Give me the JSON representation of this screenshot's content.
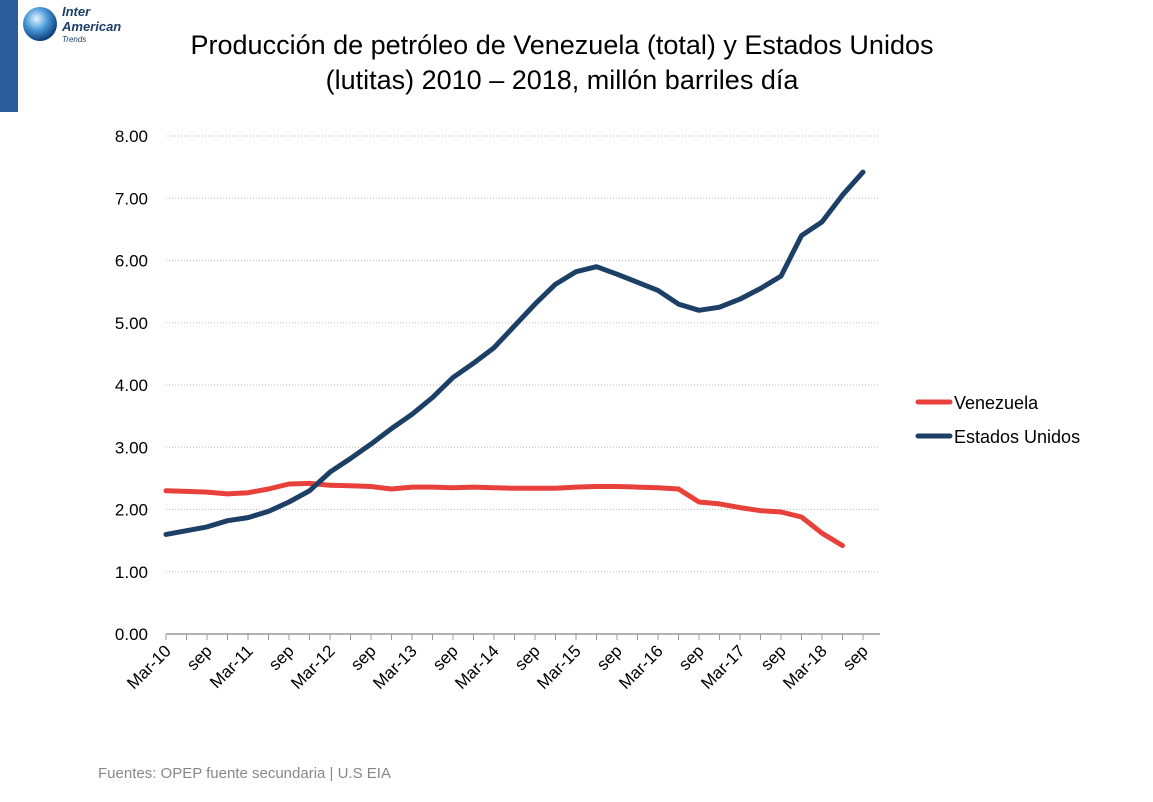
{
  "logo": {
    "line1": "Inter",
    "line2": "American",
    "line3": "Trends"
  },
  "source": "Fuentes: OPEP fuente secundaria | U.S EIA",
  "chart_data": {
    "type": "line",
    "title": [
      "Producción de petróleo de Venezuela (total) y Estados Unidos",
      "(lutitas) 2010 – 2018, millón barriles día"
    ],
    "categories": [
      "Mar-10",
      null,
      "sep",
      null,
      "Mar-11",
      null,
      "sep",
      null,
      "Mar-12",
      null,
      "sep",
      null,
      "Mar-13",
      null,
      "sep",
      null,
      "Mar-14",
      null,
      "sep",
      null,
      "Mar-15",
      null,
      "sep",
      null,
      "Mar-16",
      null,
      "sep",
      null,
      "Mar-17",
      null,
      "sep",
      null,
      "Mar-18",
      null,
      "sep"
    ],
    "series": [
      {
        "name": "Venezuela",
        "color": "#e8403a",
        "values": [
          2.3,
          2.29,
          2.28,
          2.25,
          2.27,
          2.33,
          2.41,
          2.42,
          2.39,
          2.38,
          2.37,
          2.33,
          2.36,
          2.36,
          2.35,
          2.36,
          2.35,
          2.34,
          2.34,
          2.34,
          2.36,
          2.37,
          2.37,
          2.36,
          2.35,
          2.33,
          2.12,
          2.09,
          2.03,
          1.98,
          1.96,
          1.88,
          1.62,
          1.42,
          null
        ]
      },
      {
        "name": "Estados Unidos",
        "color": "#1c3f66",
        "values": [
          1.6,
          1.66,
          1.72,
          1.82,
          1.87,
          1.97,
          2.12,
          2.3,
          2.6,
          2.82,
          3.05,
          3.3,
          3.53,
          3.8,
          4.12,
          4.35,
          4.6,
          4.95,
          5.3,
          5.62,
          5.82,
          5.9,
          5.78,
          5.65,
          5.52,
          5.3,
          5.2,
          5.25,
          5.38,
          5.55,
          5.75,
          6.4,
          6.62,
          7.05,
          7.42
        ]
      }
    ],
    "ylim": [
      0,
      8
    ],
    "yticks": [
      {
        "value": 0,
        "label": "0.00"
      },
      {
        "value": 1,
        "label": "1.00"
      },
      {
        "value": 2,
        "label": "2.00"
      },
      {
        "value": 3,
        "label": "3.00"
      },
      {
        "value": 4,
        "label": "4.00"
      },
      {
        "value": 5,
        "label": "5.00"
      },
      {
        "value": 6,
        "label": "6.00"
      },
      {
        "value": 7,
        "label": "7.00"
      },
      {
        "value": 8,
        "label": "8.00"
      }
    ],
    "grid": true,
    "legend": "right"
  }
}
